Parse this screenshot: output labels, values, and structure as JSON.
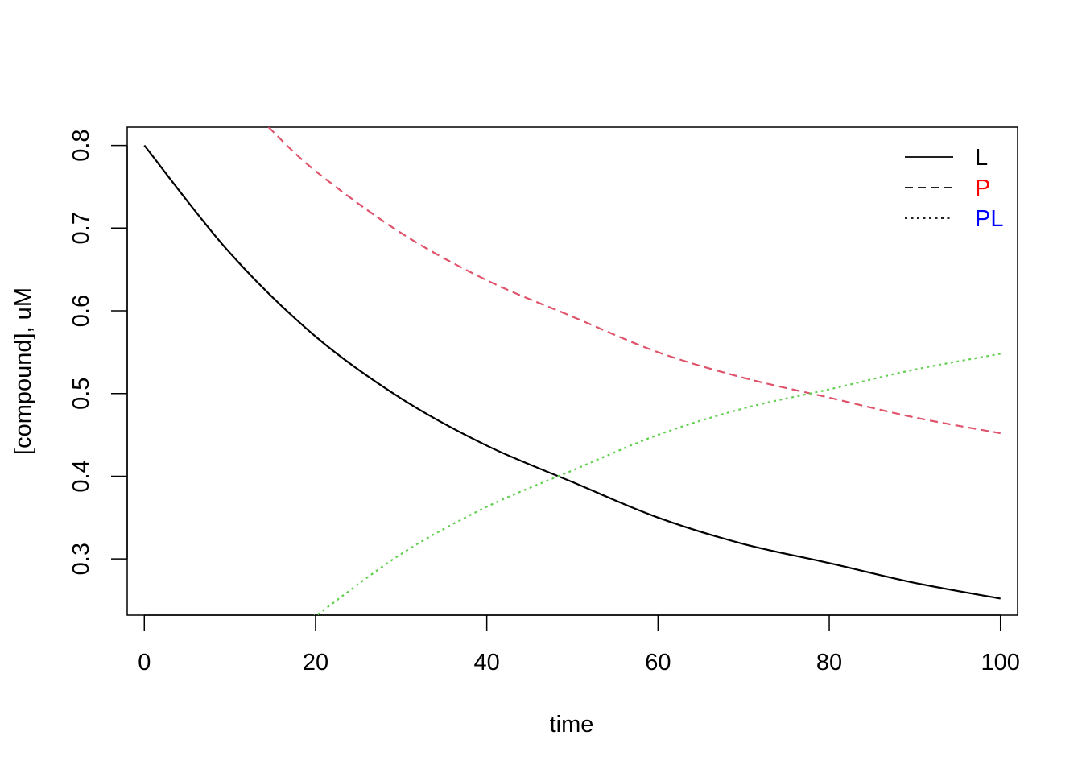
{
  "chart_data": {
    "type": "line",
    "title": "",
    "xlabel": "time",
    "ylabel": "[compound], uM",
    "xlim": [
      -2,
      102
    ],
    "ylim": [
      0.232,
      0.822
    ],
    "x_ticks": [
      0,
      20,
      40,
      60,
      80,
      100
    ],
    "y_ticks": [
      0.3,
      0.4,
      0.5,
      0.6,
      0.7,
      0.8
    ],
    "x_tick_labels": [
      "0",
      "20",
      "40",
      "60",
      "80",
      "100"
    ],
    "y_tick_labels": [
      "0.3",
      "0.4",
      "0.5",
      "0.6",
      "0.7",
      "0.8"
    ],
    "grid": false,
    "legend_position": "top-right",
    "series": [
      {
        "name": "L",
        "color": "#000000",
        "legend_text_color": "#000000",
        "dash": "solid",
        "x": [
          0,
          10,
          20,
          30,
          40,
          50,
          60,
          70,
          80,
          90,
          100
        ],
        "y": [
          0.8,
          0.67,
          0.569,
          0.494,
          0.437,
          0.393,
          0.35,
          0.318,
          0.295,
          0.271,
          0.252
        ]
      },
      {
        "name": "P",
        "color": "#DF536B",
        "legend_text_color": "#FF0000",
        "dash": "dashed",
        "x": [
          14.5,
          20,
          30,
          40,
          50,
          60,
          70,
          80,
          90,
          100
        ],
        "y": [
          0.822,
          0.769,
          0.694,
          0.637,
          0.593,
          0.55,
          0.519,
          0.495,
          0.471,
          0.452
        ]
      },
      {
        "name": "PL",
        "color": "#61D04F",
        "legend_text_color": "#0000FF",
        "dash": "dotted",
        "x": [
          19.8,
          20,
          30,
          40,
          50,
          60,
          70,
          80,
          90,
          100
        ],
        "y": [
          0.232,
          0.231,
          0.306,
          0.363,
          0.407,
          0.45,
          0.482,
          0.505,
          0.529,
          0.548
        ]
      }
    ]
  }
}
